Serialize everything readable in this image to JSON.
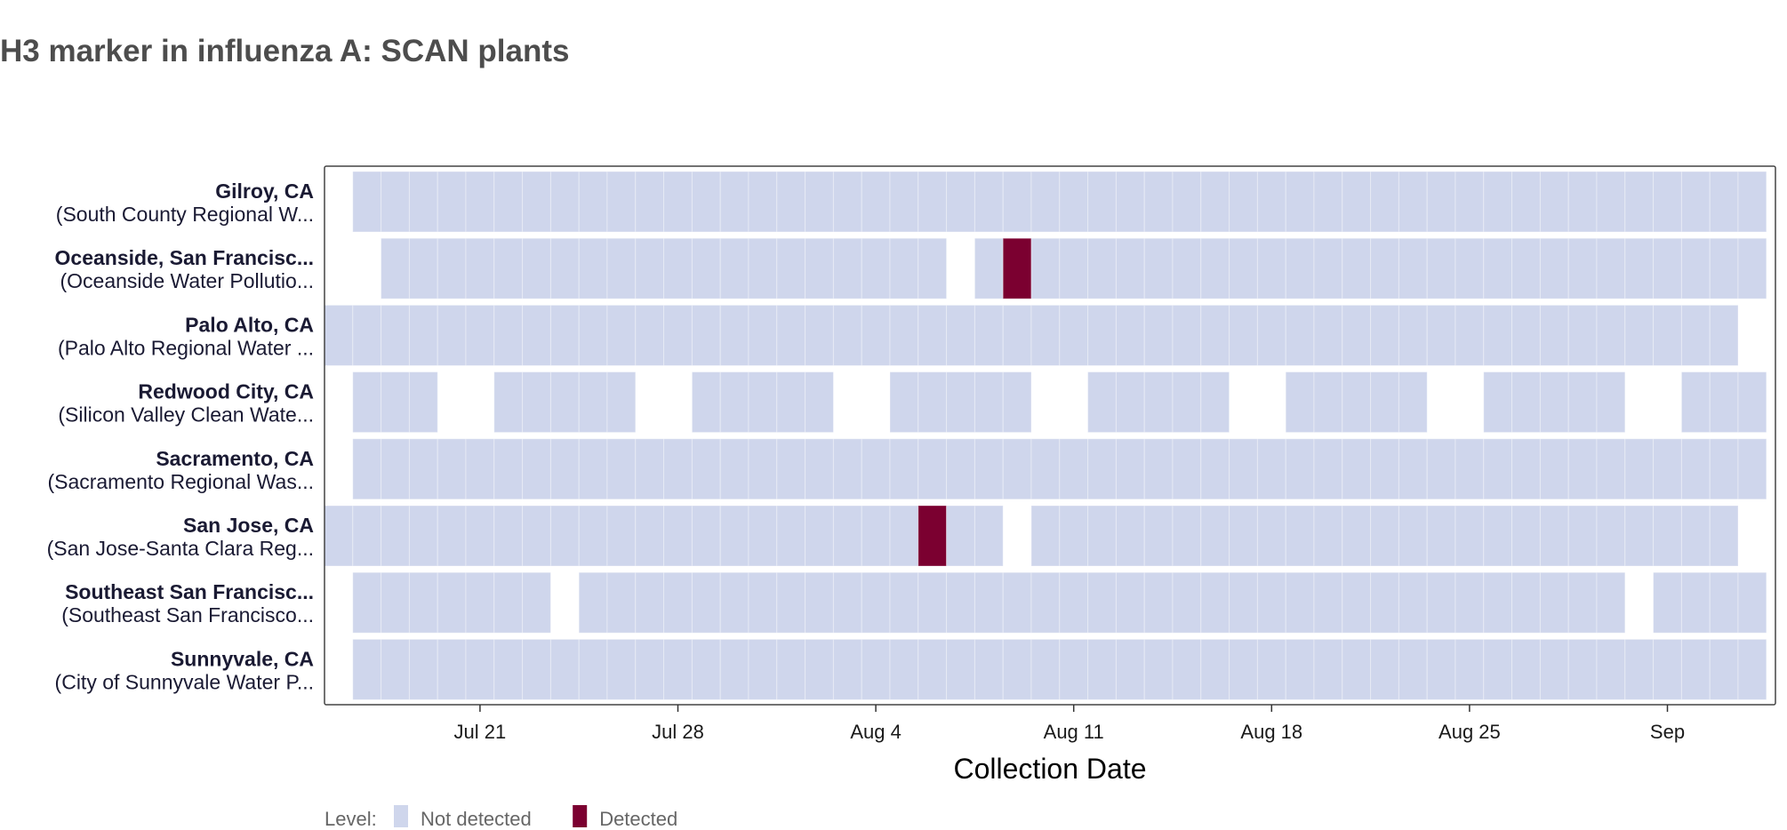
{
  "chart_data": {
    "type": "heatmap",
    "title": "H3 marker in influenza A: SCAN plants",
    "xlabel": "Collection Date",
    "ylabel": "",
    "x_range": [
      "2024-07-16",
      "2024-09-04"
    ],
    "x_ticks": [
      {
        "date": "2024-07-21",
        "label": "Jul 21"
      },
      {
        "date": "2024-07-28",
        "label": "Jul 28"
      },
      {
        "date": "2024-08-04",
        "label": "Aug 4"
      },
      {
        "date": "2024-08-11",
        "label": "Aug 11"
      },
      {
        "date": "2024-08-18",
        "label": "Aug 18"
      },
      {
        "date": "2024-08-25",
        "label": "Aug 25"
      },
      {
        "date": "2024-09-01",
        "label": "Sep"
      }
    ],
    "legend": {
      "title": "Level:",
      "position": "bottom-left",
      "entries": [
        {
          "label": "Not detected",
          "color": "#cfd6ec"
        },
        {
          "label": "Detected",
          "color": "#7b0030"
        }
      ]
    },
    "rows": [
      {
        "name": "Gilroy, CA",
        "plant": "(South County Regional W...",
        "samples": [
          {
            "from": "2024-07-17",
            "to": "2024-09-04",
            "level": "Not detected"
          }
        ]
      },
      {
        "name": "Oceanside, San Francisc...",
        "plant": "(Oceanside Water Pollutio...",
        "samples": [
          {
            "from": "2024-07-18",
            "to": "2024-08-06",
            "level": "Not detected"
          },
          {
            "from": "2024-08-08",
            "to": "2024-08-08",
            "level": "Not detected"
          },
          {
            "from": "2024-08-09",
            "to": "2024-08-09",
            "level": "Detected"
          },
          {
            "from": "2024-08-10",
            "to": "2024-09-04",
            "level": "Not detected"
          }
        ]
      },
      {
        "name": "Palo Alto, CA",
        "plant": "(Palo Alto Regional Water ...",
        "samples": [
          {
            "from": "2024-07-16",
            "to": "2024-09-03",
            "level": "Not detected"
          }
        ]
      },
      {
        "name": "Redwood City, CA",
        "plant": "(Silicon Valley Clean Wate...",
        "samples": [
          {
            "from": "2024-07-17",
            "to": "2024-07-19",
            "level": "Not detected"
          },
          {
            "from": "2024-07-22",
            "to": "2024-07-26",
            "level": "Not detected"
          },
          {
            "from": "2024-07-29",
            "to": "2024-08-02",
            "level": "Not detected"
          },
          {
            "from": "2024-08-05",
            "to": "2024-08-09",
            "level": "Not detected"
          },
          {
            "from": "2024-08-12",
            "to": "2024-08-16",
            "level": "Not detected"
          },
          {
            "from": "2024-08-19",
            "to": "2024-08-23",
            "level": "Not detected"
          },
          {
            "from": "2024-08-26",
            "to": "2024-08-30",
            "level": "Not detected"
          },
          {
            "from": "2024-09-02",
            "to": "2024-09-04",
            "level": "Not detected"
          }
        ]
      },
      {
        "name": "Sacramento, CA",
        "plant": "(Sacramento Regional Was...",
        "samples": [
          {
            "from": "2024-07-17",
            "to": "2024-09-04",
            "level": "Not detected"
          }
        ]
      },
      {
        "name": "San Jose, CA",
        "plant": "(San Jose-Santa Clara Reg...",
        "samples": [
          {
            "from": "2024-07-16",
            "to": "2024-08-05",
            "level": "Not detected"
          },
          {
            "from": "2024-08-06",
            "to": "2024-08-06",
            "level": "Detected"
          },
          {
            "from": "2024-08-07",
            "to": "2024-08-08",
            "level": "Not detected"
          },
          {
            "from": "2024-08-10",
            "to": "2024-09-03",
            "level": "Not detected"
          }
        ]
      },
      {
        "name": "Southeast San Francisc...",
        "plant": "(Southeast San Francisco...",
        "samples": [
          {
            "from": "2024-07-17",
            "to": "2024-07-23",
            "level": "Not detected"
          },
          {
            "from": "2024-07-25",
            "to": "2024-08-30",
            "level": "Not detected"
          },
          {
            "from": "2024-09-01",
            "to": "2024-09-04",
            "level": "Not detected"
          }
        ]
      },
      {
        "name": "Sunnyvale, CA",
        "plant": "(City of Sunnyvale Water P...",
        "samples": [
          {
            "from": "2024-07-17",
            "to": "2024-09-04",
            "level": "Not detected"
          }
        ]
      }
    ]
  }
}
